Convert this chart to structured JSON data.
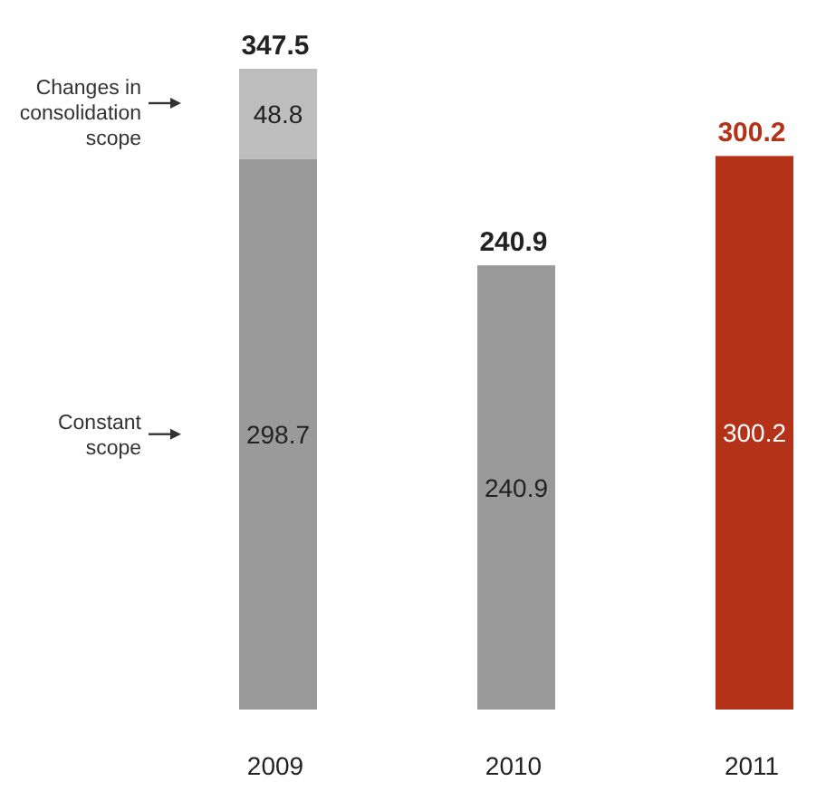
{
  "chart_data": {
    "type": "bar",
    "stacked": true,
    "categories": [
      "2009",
      "2010",
      "2011"
    ],
    "series": [
      {
        "color": "#9a9a9a",
        "colors": [
          "#9a9a9a",
          "#9a9a9a",
          "#b33218"
        ],
        "values": [
          298.7,
          240.9,
          300.2
        ]
      },
      {
        "color": "#bdbdbd",
        "values": [
          48.8,
          null,
          null
        ]
      }
    ],
    "data_labels": true,
    "totals": [
      "347.5",
      "240.9",
      "300.2"
    ],
    "annotations": [
      "Changes in consolidation scope",
      "Constant scope"
    ]
  }
}
